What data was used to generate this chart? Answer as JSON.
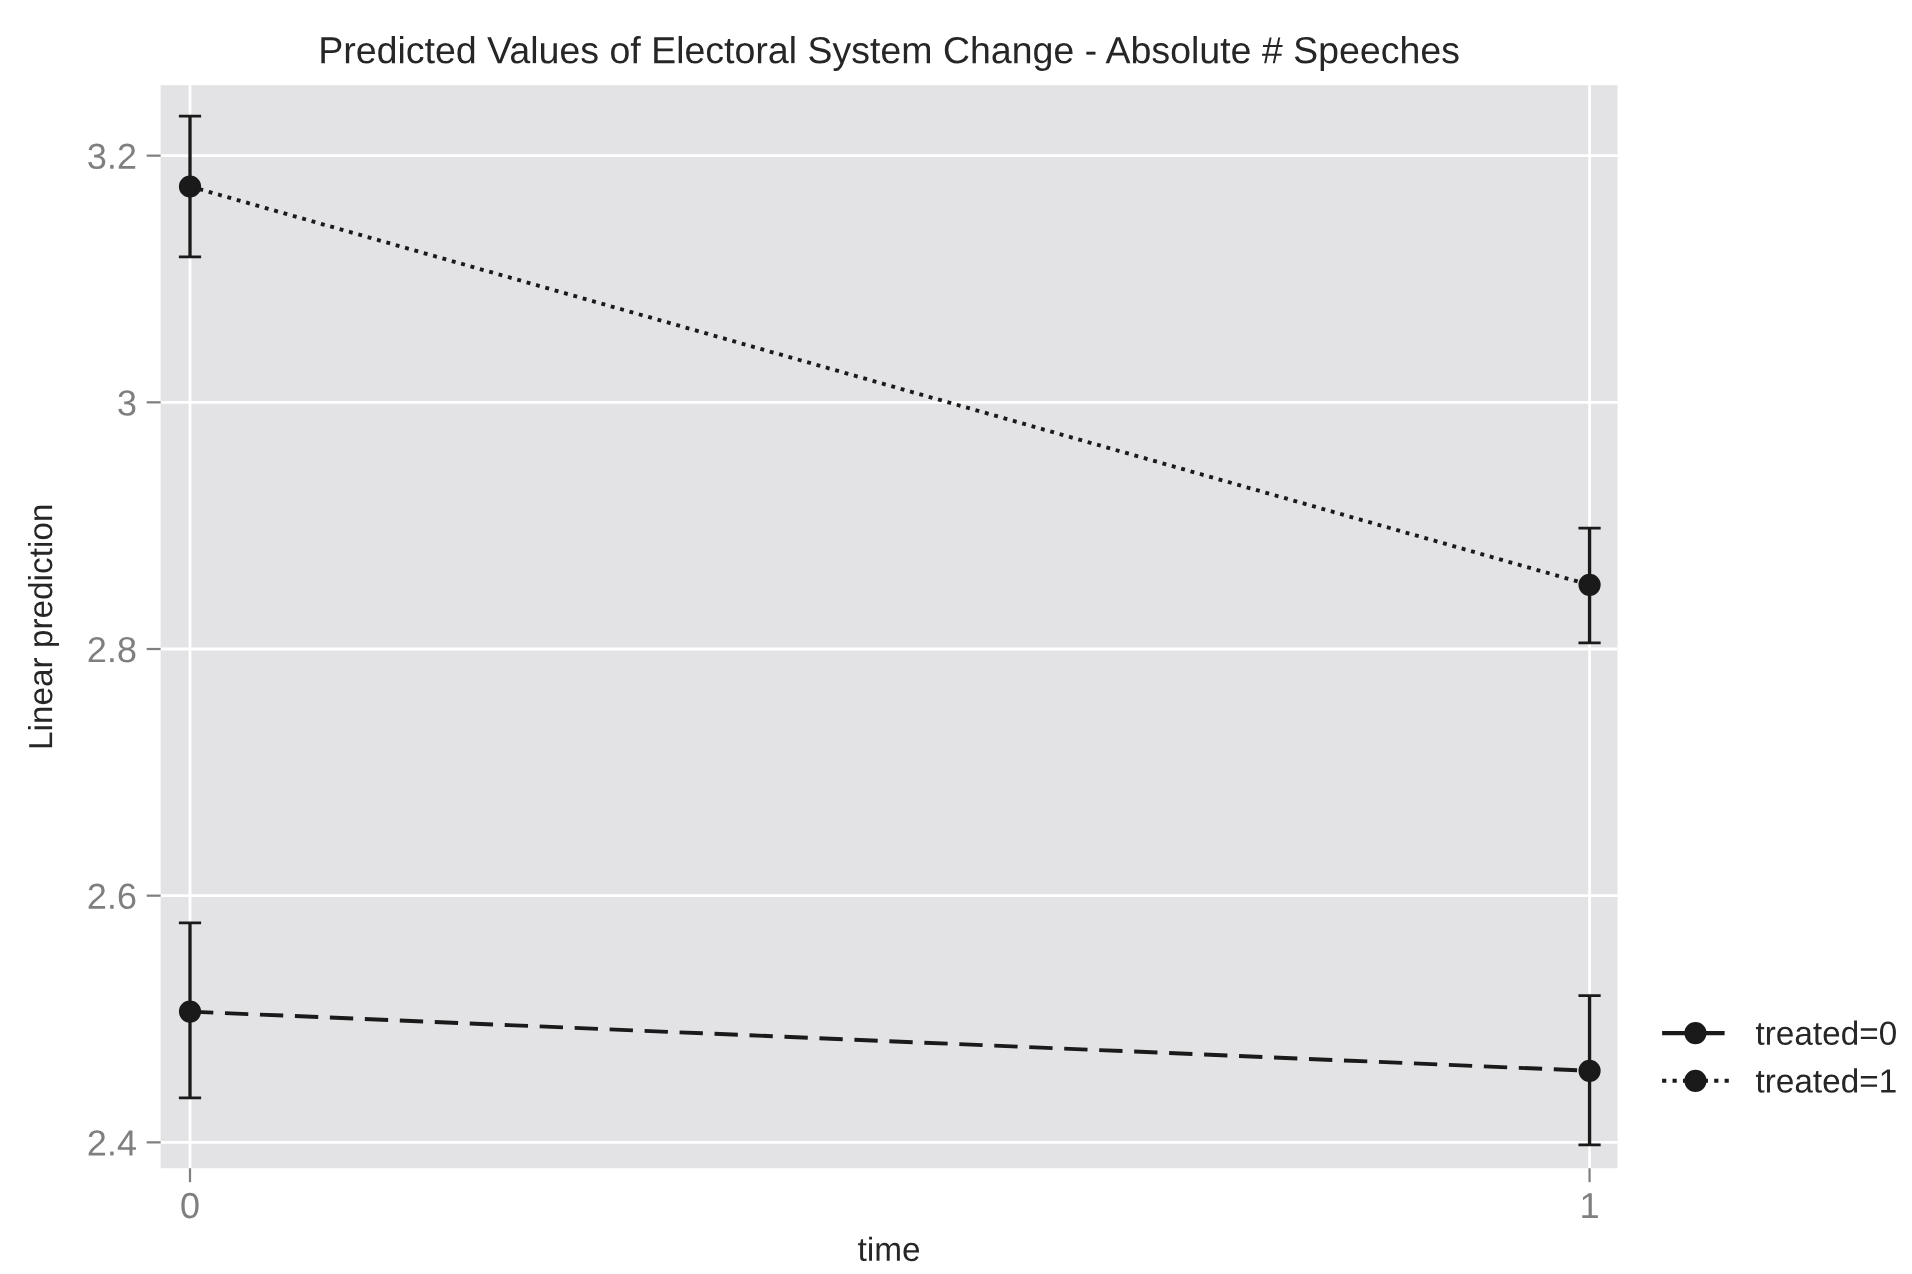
{
  "chart_data": {
    "type": "line",
    "title": "Predicted Values of Electoral System Change - Absolute # Speeches",
    "xlabel": "time",
    "ylabel": "Linear prediction",
    "x": [
      0,
      1
    ],
    "xlim": [
      -0.021,
      1.02
    ],
    "xticks": [
      0,
      1
    ],
    "ylim": [
      2.379,
      3.257
    ],
    "yticks": [
      2.4,
      2.6,
      2.8,
      3,
      3.2
    ],
    "series": [
      {
        "name": "treated=0",
        "color": "#1a1a1a",
        "line_style": "dashed",
        "values": [
          2.506,
          2.458
        ],
        "errors": [
          [
            2.436,
            2.578
          ],
          [
            2.398,
            2.519
          ]
        ]
      },
      {
        "name": "treated=1",
        "color": "#1a1a1a",
        "line_style": "dotted",
        "values": [
          3.175,
          2.852
        ],
        "errors": [
          [
            3.118,
            3.232
          ],
          [
            2.805,
            2.898
          ]
        ]
      }
    ],
    "marker": "circle",
    "grid": true,
    "legend": "right"
  }
}
